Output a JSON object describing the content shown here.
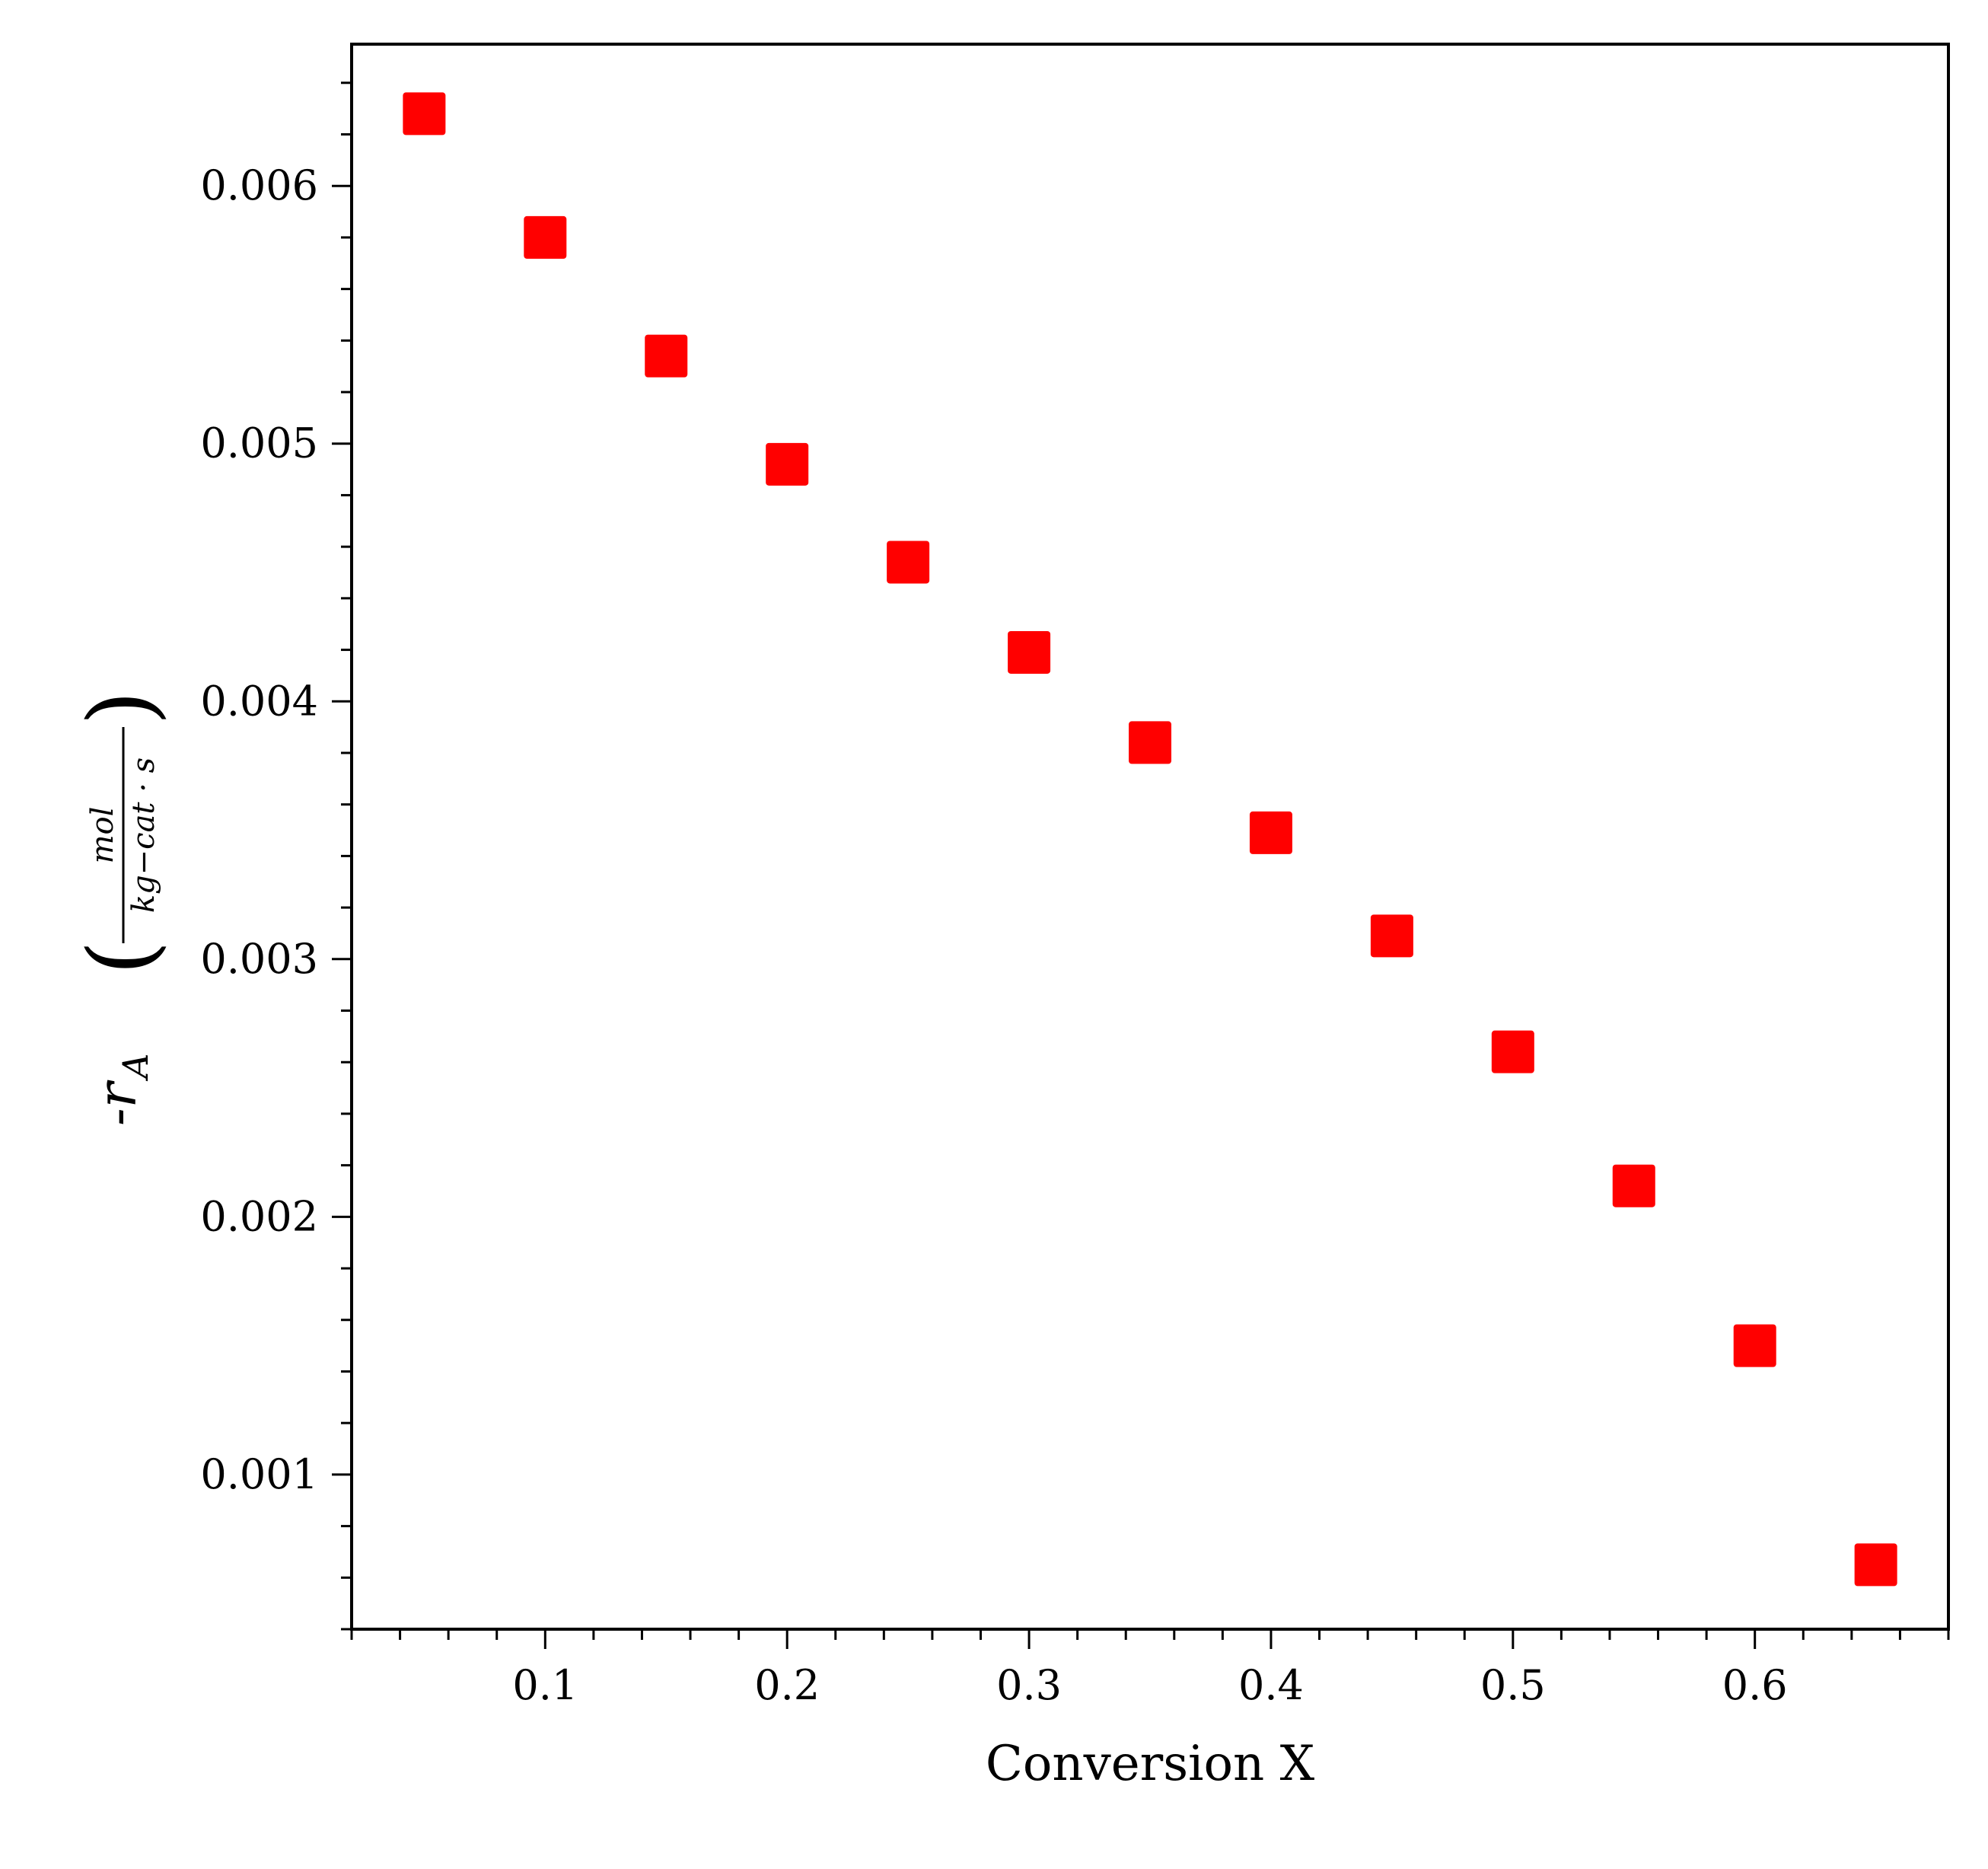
{
  "chart_data": {
    "type": "scatter",
    "title": "",
    "xlabel": "Conversion X",
    "ylabel": {
      "main": "-r",
      "subscript": "A",
      "numerator": "mol",
      "denominator": "kg−cat · s"
    },
    "xlim": [
      0.02,
      0.68
    ],
    "ylim": [
      0.0004,
      0.00655
    ],
    "x_ticks": [
      "0.1",
      "0.2",
      "0.3",
      "0.4",
      "0.5",
      "0.6"
    ],
    "x_tick_values": [
      0.1,
      0.2,
      0.3,
      0.4,
      0.5,
      0.6
    ],
    "y_ticks": [
      "0.001",
      "0.002",
      "0.003",
      "0.004",
      "0.005",
      "0.006"
    ],
    "y_tick_values": [
      0.001,
      0.002,
      0.003,
      0.004,
      0.005,
      0.006
    ],
    "x_minor_step": 0.02,
    "y_minor_step": 0.0002,
    "grid": false,
    "legend": "none",
    "marker": "square",
    "marker_color": "#ff0000",
    "series": [
      {
        "x": [
          0.05,
          0.1,
          0.15,
          0.2,
          0.25,
          0.3,
          0.35,
          0.4,
          0.45,
          0.5,
          0.55,
          0.6,
          0.65
        ],
        "y": [
          0.00628,
          0.0058,
          0.00534,
          0.00492,
          0.00454,
          0.00419,
          0.00384,
          0.00349,
          0.00309,
          0.00264,
          0.00212,
          0.0015,
          0.00065
        ]
      }
    ]
  }
}
